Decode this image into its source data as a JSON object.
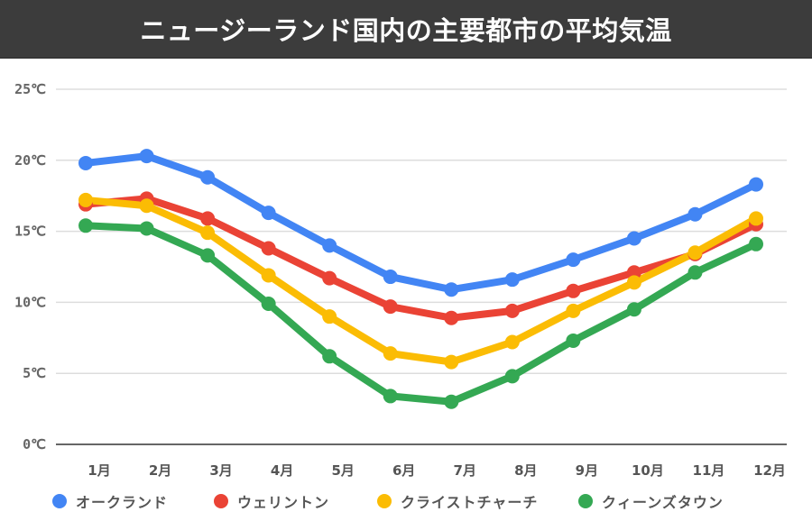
{
  "title": "ニュージーランド国内の主要都市の平均気温",
  "chart_data": {
    "type": "line",
    "title": "ニュージーランド国内の主要都市の平均気温",
    "xlabel": "",
    "ylabel": "",
    "categories": [
      "1月",
      "2月",
      "3月",
      "4月",
      "5月",
      "6月",
      "7月",
      "8月",
      "9月",
      "10月",
      "11月",
      "12月"
    ],
    "ylim": [
      0,
      25
    ],
    "yticks": [
      0,
      5,
      10,
      15,
      20,
      25
    ],
    "ytick_labels": [
      "0℃",
      "5℃",
      "10℃",
      "15℃",
      "20℃",
      "25℃"
    ],
    "grid": true,
    "legend_position": "bottom",
    "series": [
      {
        "name": "オークランド",
        "color": "#4285f4",
        "values": [
          19.8,
          20.3,
          18.8,
          16.3,
          14.0,
          11.8,
          10.9,
          11.6,
          13.0,
          14.5,
          16.2,
          18.3
        ]
      },
      {
        "name": "ウェリントン",
        "color": "#ea4335",
        "values": [
          16.9,
          17.3,
          15.9,
          13.8,
          11.7,
          9.7,
          8.9,
          9.4,
          10.8,
          12.1,
          13.4,
          15.5
        ]
      },
      {
        "name": "クライストチャーチ",
        "color": "#fbbc04",
        "values": [
          17.2,
          16.8,
          14.9,
          11.9,
          9.0,
          6.4,
          5.8,
          7.2,
          9.4,
          11.4,
          13.5,
          15.9
        ]
      },
      {
        "name": "クィーンズタウン",
        "color": "#34a853",
        "values": [
          15.4,
          15.2,
          13.3,
          9.9,
          6.2,
          3.4,
          3.0,
          4.8,
          7.3,
          9.5,
          12.1,
          14.1
        ]
      }
    ]
  }
}
